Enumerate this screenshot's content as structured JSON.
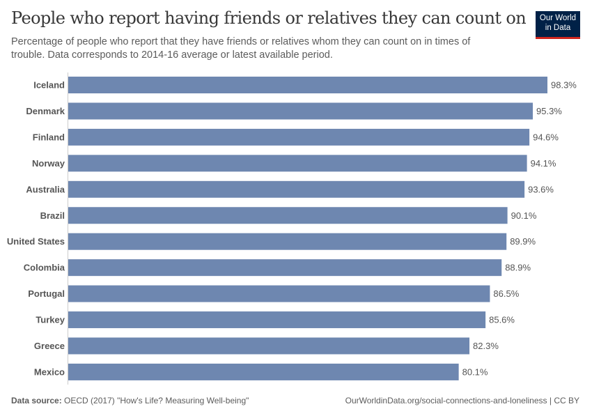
{
  "header": {
    "title": "People who report having friends or relatives they can count on",
    "subtitle": "Percentage of people who report that they have friends or relatives whom they can count on in times of trouble. Data corresponds to 2014-16 average or latest available period.",
    "logo_line1": "Our World",
    "logo_line2": "in Data"
  },
  "footer": {
    "source_label": "Data source:",
    "source_text": "OECD (2017) \"How's Life? Measuring Well-being\"",
    "url": "OurWorldinData.org/social-connections-and-loneliness | CC BY"
  },
  "colors": {
    "bar": "#6e87b0",
    "logo_bg": "#002147",
    "logo_accent": "#ce261e"
  },
  "chart_data": {
    "type": "bar",
    "orientation": "horizontal",
    "categories": [
      "Iceland",
      "Denmark",
      "Finland",
      "Norway",
      "Australia",
      "Brazil",
      "United States",
      "Colombia",
      "Portugal",
      "Turkey",
      "Greece",
      "Mexico"
    ],
    "values": [
      98.3,
      95.3,
      94.6,
      94.1,
      93.6,
      90.1,
      89.9,
      88.9,
      86.5,
      85.6,
      82.3,
      80.1
    ],
    "unit": "%",
    "xlim": [
      0,
      98.3
    ],
    "grid": false
  }
}
